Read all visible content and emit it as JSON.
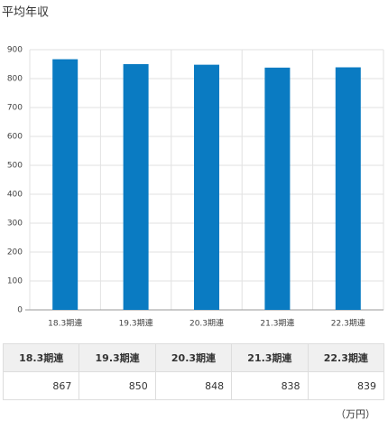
{
  "chart_data": {
    "type": "bar",
    "title": "平均年収",
    "categories": [
      "18.3期連",
      "19.3期連",
      "20.3期連",
      "21.3期連",
      "22.3期連"
    ],
    "values": [
      867,
      850,
      848,
      838,
      839
    ],
    "color": "#0a7bc2",
    "ylim": [
      0,
      900
    ],
    "yticks": [
      0,
      100,
      200,
      300,
      400,
      500,
      600,
      700,
      800,
      900
    ],
    "grid": true,
    "unit": "（万円）"
  }
}
